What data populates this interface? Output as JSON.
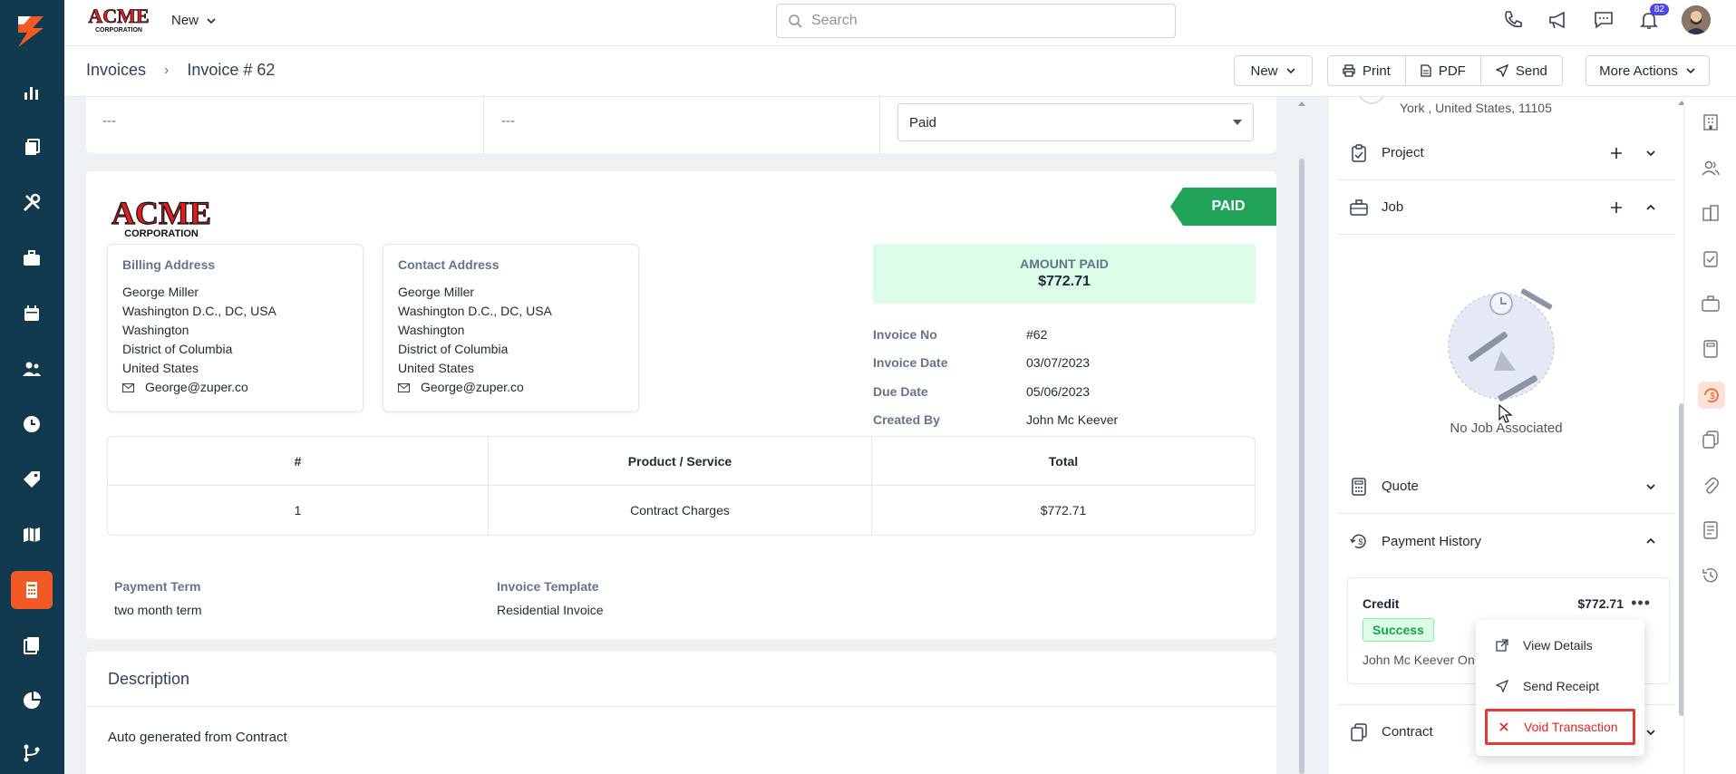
{
  "topbar": {
    "brand_top": "ACME",
    "brand_bottom": "CORPORATION",
    "new_label": "New",
    "search_placeholder": "Search",
    "notification_count": "82"
  },
  "subbar": {
    "breadcrumb_root": "Invoices",
    "breadcrumb_current": "Invoice # 62",
    "new_label": "New",
    "print_label": "Print",
    "pdf_label": "PDF",
    "send_label": "Send",
    "more_label": "More Actions"
  },
  "topcard": {
    "cell1": "---",
    "cell2": "---",
    "status_value": "Paid"
  },
  "invoice": {
    "logo_top": "ACME",
    "logo_bottom": "CORPORATION",
    "status_tag": "PAID",
    "billing": {
      "heading": "Billing Address",
      "name": "George Miller",
      "line1": "Washington D.C., DC, USA",
      "line2": "Washington",
      "line3": "District of Columbia",
      "line4": "United States",
      "email": "George@zuper.co"
    },
    "contact": {
      "heading": "Contact Address",
      "name": "George Miller",
      "line1": "Washington D.C., DC, USA",
      "line2": "Washington",
      "line3": "District of Columbia",
      "line4": "United States",
      "email": "George@zuper.co"
    },
    "amount_label": "AMOUNT PAID",
    "amount_value": "$772.71",
    "meta": [
      {
        "label": "Invoice No",
        "value": "#62"
      },
      {
        "label": "Invoice Date",
        "value": "03/07/2023"
      },
      {
        "label": "Due Date",
        "value": "05/06/2023"
      },
      {
        "label": "Created By",
        "value": "John Mc Keever"
      }
    ],
    "table": {
      "headers": [
        "#",
        "Product / Service",
        "Total"
      ],
      "rows": [
        [
          "1",
          "Contract Charges",
          "$772.71"
        ]
      ]
    },
    "payment_term_label": "Payment Term",
    "payment_term_value": "two month term",
    "template_label": "Invoice Template",
    "template_value": "Residential Invoice"
  },
  "description": {
    "heading": "Description",
    "text": "Auto generated from Contract"
  },
  "rightpanel": {
    "address_line": "York , United States, 11105",
    "project_label": "Project",
    "job_label": "Job",
    "no_job": "No Job Associated",
    "quote_label": "Quote",
    "payment_history_label": "Payment History",
    "payment": {
      "type": "Credit",
      "amount": "$772.71",
      "status": "Success",
      "by": "John Mc Keever On"
    },
    "contract_label": "Contract"
  },
  "menu": {
    "view_details": "View Details",
    "send_receipt": "Send Receipt",
    "void_transaction": "Void Transaction"
  },
  "colors": {
    "nav_bg": "#123a4e",
    "accent": "#f15a24",
    "paid_green": "#22a35a",
    "danger": "#dc2626"
  }
}
